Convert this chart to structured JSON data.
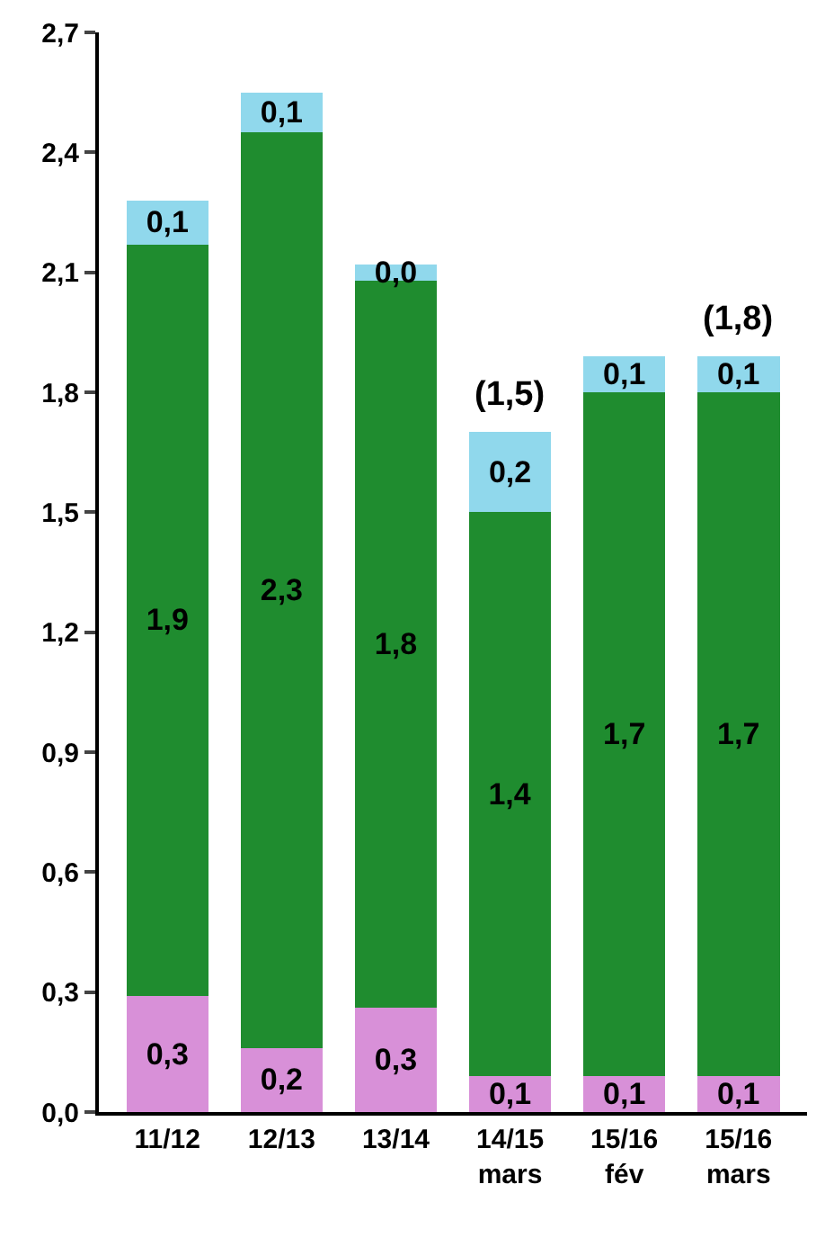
{
  "chart_data": {
    "type": "bar",
    "stacked": true,
    "categories": [
      "11/12",
      "12/13",
      "13/14",
      "14/15\nmars",
      "15/16\nfév",
      "15/16\nmars"
    ],
    "series": [
      {
        "color": "#d890d8",
        "values": [
          0.29,
          0.16,
          0.26,
          0.09,
          0.09,
          0.09
        ],
        "value_labels": [
          "0,3",
          "0,2",
          "0,3",
          "0,1",
          "0,1",
          "0,1"
        ]
      },
      {
        "color": "#1f8c2f",
        "values": [
          1.88,
          2.29,
          1.82,
          1.41,
          1.71,
          1.71
        ],
        "value_labels": [
          "1,9",
          "2,3",
          "1,8",
          "1,4",
          "1,7",
          "1,7"
        ]
      },
      {
        "color": "#90d8ec",
        "values": [
          0.11,
          0.1,
          0.04,
          0.2,
          0.09,
          0.09
        ],
        "value_labels": [
          "0,1",
          "0,1",
          "0,0",
          "0,2",
          "0,1",
          "0,1"
        ]
      }
    ],
    "totals": [
      null,
      null,
      null,
      "(1,5)",
      null,
      "(1,8)"
    ],
    "ylim": [
      0,
      2.7
    ],
    "yticks": [
      {
        "value": 0,
        "label": "0,0"
      },
      {
        "value": 0.3,
        "label": "0,3"
      },
      {
        "value": 0.6,
        "label": "0,6"
      },
      {
        "value": 0.9,
        "label": "0,9"
      },
      {
        "value": 1.2,
        "label": "1,2"
      },
      {
        "value": 1.5,
        "label": "1,5"
      },
      {
        "value": 1.8,
        "label": "1,8"
      },
      {
        "value": 2.1,
        "label": "2,1"
      },
      {
        "value": 2.4,
        "label": "2,4"
      },
      {
        "value": 2.7,
        "label": "2,7"
      }
    ]
  }
}
